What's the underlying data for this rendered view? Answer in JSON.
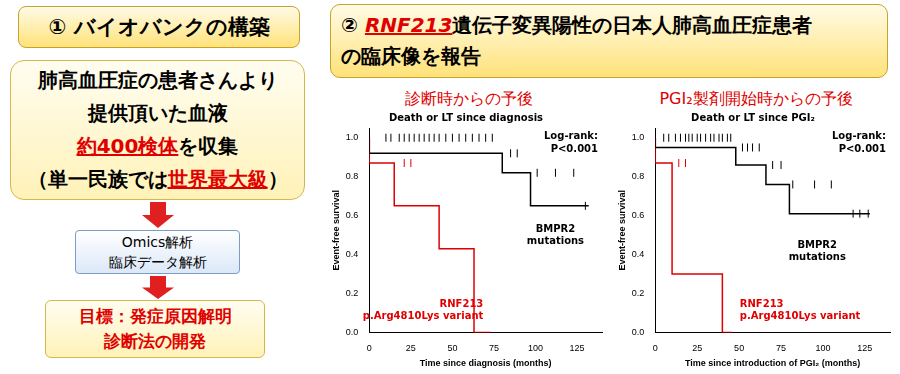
{
  "left_panel": {
    "header": "① バイオバンクの構築",
    "box_lines": [
      [
        "肺高血圧症の患者さんより"
      ],
      [
        "提供頂いた血液"
      ],
      [
        {
          "text": "約400検体",
          "emphasis": true
        },
        "を収集"
      ],
      [
        "（単一民族では",
        {
          "text": "世界最大級",
          "emphasis": true
        },
        "）"
      ]
    ],
    "analysis_lines": [
      "Omics解析",
      "臨床データ解析"
    ],
    "goal_lines": [
      "目標：発症原因解明",
      "診断法の開発"
    ]
  },
  "right_panel": {
    "header_lines": [
      [
        "② ",
        {
          "text": "RNF213",
          "emphasis": true
        },
        "遺伝子変異陽性の日本人肺高血圧症患者"
      ],
      [
        "の臨床像を報告"
      ]
    ]
  },
  "chart_data": [
    {
      "type": "line",
      "subtitle": "診断時からの予後",
      "title": "Death or LT since diagnosis",
      "x_label": "Time since diagnosis (months)",
      "y_label": "Event-free survival",
      "annotations": [
        "Log-rank:",
        "P<0.001"
      ],
      "xlim": [
        0,
        140
      ],
      "xticks": [
        0,
        25,
        50,
        75,
        100,
        125
      ],
      "ylim": [
        0,
        1.05
      ],
      "yticks": [
        {
          "value": 0,
          "label": "0.0"
        },
        {
          "value": 0.2,
          "label": "0.2"
        },
        {
          "value": 0.4,
          "label": "0.4"
        },
        {
          "value": 0.6,
          "label": "0.6"
        },
        {
          "value": 0.8,
          "label": "0.8"
        },
        {
          "value": 1,
          "label": "1.0"
        }
      ],
      "grid": false,
      "series": [
        {
          "name": "BMPR2 mutations",
          "color": "#000000",
          "line_style": "step",
          "marker": "vertical_line",
          "x": [
            0,
            80,
            97,
            127,
            132
          ],
          "values": [
            1,
            0.92,
            0.82,
            0.65,
            0.65
          ],
          "censored": {
            "x": [
              10,
              13,
              18,
              21,
              24,
              27,
              30,
              33,
              36,
              39,
              42,
              46,
              50,
              54,
              58,
              62,
              66,
              70,
              74,
              85,
              89,
              101,
              112,
              123,
              130
            ],
            "y": [
              1,
              1,
              1,
              1,
              1,
              1,
              1,
              1,
              1,
              1,
              1,
              1,
              1,
              1,
              1,
              1,
              1,
              1,
              1,
              0.92,
              0.92,
              0.82,
              0.82,
              0.82,
              0.65
            ]
          }
        },
        {
          "name": "RNF213 p.Arg4810Lys variant",
          "color": "#e00000",
          "line_style": "step",
          "marker": "vertical_line",
          "x": [
            0,
            15,
            42,
            63,
            73
          ],
          "values": [
            1,
            0.87,
            0.65,
            0.43,
            0
          ],
          "censored": {
            "x": [
              21,
              25
            ],
            "y": [
              0.87,
              0.87
            ]
          }
        }
      ]
    },
    {
      "type": "line",
      "subtitle": "PGI₂製剤開始時からの予後",
      "title": "Death or LT since PGI₂",
      "x_label": "Time since introduction of PGI₂ (months)",
      "y_label": "Event-free survival",
      "annotations": [
        "Log-rank:",
        "P<0.001"
      ],
      "xlim": [
        0,
        140
      ],
      "xticks": [
        0,
        25,
        50,
        75,
        100,
        125
      ],
      "ylim": [
        0,
        1.05
      ],
      "yticks": [
        {
          "value": 0,
          "label": "0.0"
        },
        {
          "value": 0.2,
          "label": "0.2"
        },
        {
          "value": 0.4,
          "label": "0.4"
        },
        {
          "value": 0.6,
          "label": "0.6"
        },
        {
          "value": 0.8,
          "label": "0.8"
        },
        {
          "value": 1,
          "label": "1.0"
        }
      ],
      "grid": false,
      "series": [
        {
          "name": "BMPR2 mutations",
          "color": "#000000",
          "line_style": "step",
          "marker": "vertical_line",
          "x": [
            0,
            48,
            66,
            80,
            115,
            128
          ],
          "values": [
            1,
            0.95,
            0.86,
            0.76,
            0.61,
            0.61
          ],
          "censored": {
            "x": [
              5,
              8,
              12,
              15,
              18,
              20,
              22,
              25,
              27,
              30,
              33,
              35,
              38,
              40,
              43,
              45,
              52,
              55,
              58,
              62,
              70,
              75,
              82,
              95,
              105,
              118,
              122,
              127
            ],
            "y": [
              1,
              1,
              1,
              1,
              1,
              1,
              1,
              1,
              1,
              1,
              1,
              1,
              1,
              1,
              1,
              1,
              0.95,
              0.95,
              0.95,
              0.95,
              0.86,
              0.86,
              0.76,
              0.76,
              0.76,
              0.61,
              0.61,
              0.61
            ]
          }
        },
        {
          "name": "RNF213 p.Arg4810Lys variant",
          "color": "#e00000",
          "line_style": "step",
          "marker": "vertical_line",
          "x": [
            0,
            10,
            40,
            46
          ],
          "values": [
            1,
            0.87,
            0.3,
            0
          ],
          "censored": {
            "x": [
              14,
              18
            ],
            "y": [
              0.87,
              0.87
            ]
          }
        }
      ]
    }
  ]
}
